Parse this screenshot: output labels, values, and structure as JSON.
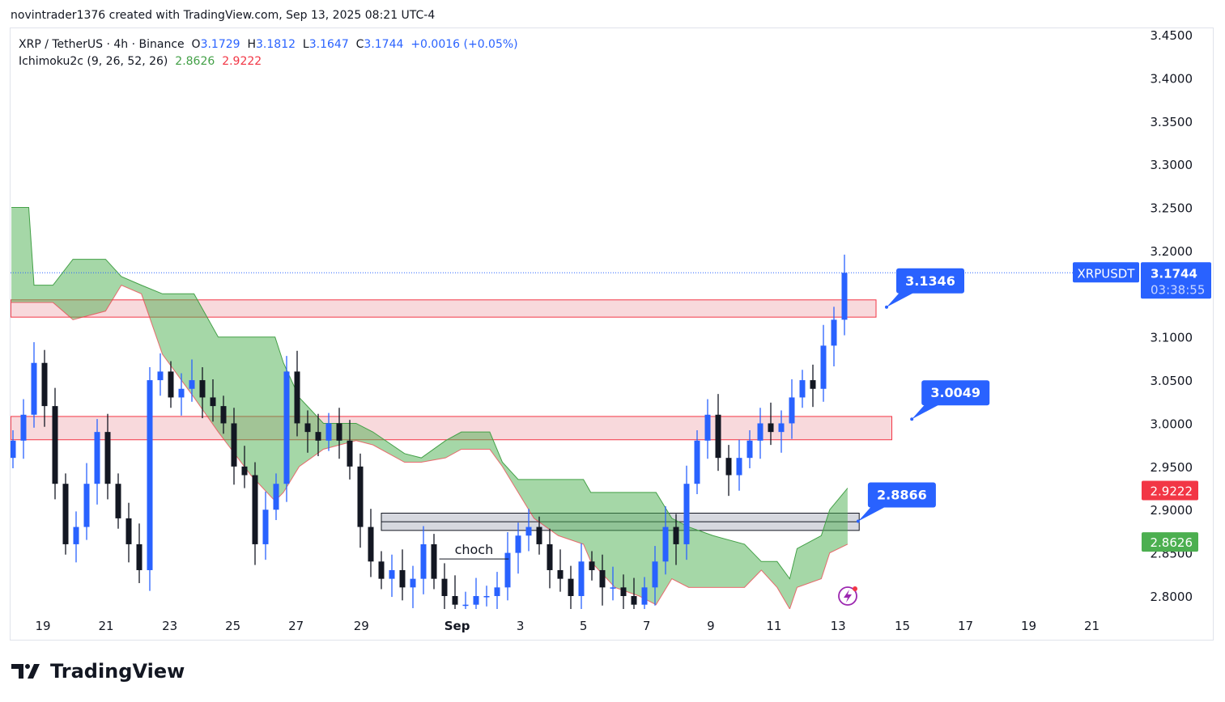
{
  "credit": "novintrader1376 created with TradingView.com, Sep 13, 2025 08:21 UTC-4",
  "legend": {
    "symbol": "XRP / TetherUS · 4h · Binance",
    "o_label": "O",
    "o": "3.1729",
    "h_label": "H",
    "h": "3.1812",
    "l_label": "L",
    "l": "3.1647",
    "c_label": "C",
    "c": "3.1744",
    "change": "+0.0016 (+0.05%)",
    "indicator": "Ichimoku2c (9, 26, 52, 26)",
    "ind_val1": "2.8626",
    "ind_val2": "2.9222"
  },
  "colors": {
    "up": "#2962ff",
    "down": "#131722",
    "cloud": "#a5d6a7",
    "span_a": "#43a047",
    "span_b": "#f23645",
    "zone": "#f8d7da",
    "zone_border": "#f23645",
    "accent": "#2962ff"
  },
  "chart_data": {
    "type": "candlestick",
    "ylim": [
      2.78,
      3.46
    ],
    "yticks": [
      "3.4500",
      "3.4000",
      "3.3500",
      "3.3000",
      "3.2500",
      "3.2000",
      "3.1000",
      "3.0500",
      "3.0000",
      "2.9500",
      "2.9000",
      "2.8500",
      "2.8000"
    ],
    "first_open": 2.96,
    "closes": [
      2.98,
      3.01,
      3.07,
      3.02,
      2.93,
      2.86,
      2.88,
      2.93,
      2.99,
      2.93,
      2.89,
      2.86,
      2.83,
      3.05,
      3.06,
      3.03,
      3.04,
      3.05,
      3.03,
      3.02,
      3.0,
      2.95,
      2.94,
      2.86,
      2.9,
      2.93,
      3.06,
      3.0,
      2.99,
      2.98,
      3.0,
      2.98,
      2.95,
      2.88,
      2.84,
      2.82,
      2.83,
      2.81,
      2.82,
      2.86,
      2.82,
      2.8,
      2.79,
      2.79,
      2.8,
      2.8,
      2.81,
      2.85,
      2.87,
      2.88,
      2.86,
      2.83,
      2.82,
      2.8,
      2.84,
      2.83,
      2.81,
      2.81,
      2.8,
      2.79,
      2.81,
      2.84,
      2.88,
      2.86,
      2.93,
      2.98,
      3.01,
      2.96,
      2.94,
      2.96,
      2.98,
      3.0,
      2.99,
      3.0,
      3.03,
      3.05,
      3.04,
      3.09,
      3.12,
      3.1744
    ],
    "cloud": [
      [
        -0.15,
        3.25,
        3.14
      ],
      [
        1.5,
        3.25,
        3.14
      ],
      [
        2,
        3.16,
        3.14
      ],
      [
        3.8,
        3.16,
        3.14
      ],
      [
        5.7,
        3.19,
        3.12
      ],
      [
        8.8,
        3.19,
        3.13
      ],
      [
        10.3,
        3.17,
        3.16
      ],
      [
        12.2,
        3.16,
        3.15
      ],
      [
        14.2,
        3.15,
        3.08
      ],
      [
        17.2,
        3.15,
        3.03
      ],
      [
        19.5,
        3.1,
        2.99
      ],
      [
        22.6,
        3.1,
        2.94
      ],
      [
        24.9,
        3.1,
        2.91
      ],
      [
        25.7,
        3.07,
        2.92
      ],
      [
        27.2,
        3.03,
        2.95
      ],
      [
        29.5,
        3.0,
        2.97
      ],
      [
        32.6,
        3.0,
        2.98
      ],
      [
        34.2,
        2.99,
        2.975
      ],
      [
        37.2,
        2.965,
        2.955
      ],
      [
        38.8,
        2.96,
        2.955
      ],
      [
        41.1,
        2.98,
        2.96
      ],
      [
        42.6,
        2.99,
        2.97
      ],
      [
        45.3,
        2.99,
        2.97
      ],
      [
        46.5,
        2.955,
        2.95
      ],
      [
        48,
        2.935,
        2.92
      ],
      [
        49.5,
        2.935,
        2.89
      ],
      [
        51.8,
        2.935,
        2.87
      ],
      [
        54.2,
        2.935,
        2.86
      ],
      [
        54.9,
        2.92,
        2.84
      ],
      [
        57.2,
        2.92,
        2.81
      ],
      [
        59.5,
        2.92,
        2.8
      ],
      [
        61.1,
        2.92,
        2.79
      ],
      [
        62.6,
        2.89,
        2.82
      ],
      [
        64.2,
        2.88,
        2.81
      ],
      [
        66.5,
        2.87,
        2.81
      ],
      [
        69.5,
        2.86,
        2.81
      ],
      [
        71.1,
        2.84,
        2.83
      ],
      [
        72.6,
        2.84,
        2.81
      ],
      [
        73.8,
        2.82,
        2.785
      ],
      [
        74.5,
        2.855,
        2.81
      ],
      [
        76.8,
        2.87,
        2.82
      ],
      [
        77.6,
        2.9,
        2.85
      ],
      [
        79.3,
        2.925,
        2.86
      ]
    ],
    "zones": [
      {
        "name": "resistance-zone-upper",
        "from": -0.2,
        "to": 82,
        "top": 3.143,
        "bottom": 3.123,
        "kind": "pink"
      },
      {
        "name": "resistance-zone-lower",
        "from": -0.2,
        "to": 83.5,
        "top": 3.008,
        "bottom": 2.981,
        "kind": "pink"
      },
      {
        "name": "support-zone",
        "from": 35,
        "to": 80.4,
        "top": 2.896,
        "bottom": 2.876,
        "kind": "gray"
      }
    ],
    "xticks": [
      {
        "label": "19",
        "idx": 2.85
      },
      {
        "label": "21",
        "idx": 8.85
      },
      {
        "label": "23",
        "idx": 14.9
      },
      {
        "label": "25",
        "idx": 20.9
      },
      {
        "label": "27",
        "idx": 26.9
      },
      {
        "label": "29",
        "idx": 33.1
      },
      {
        "label": "Sep",
        "idx": 42.2
      },
      {
        "label": "3",
        "idx": 48.2
      },
      {
        "label": "5",
        "idx": 54.2
      },
      {
        "label": "7",
        "idx": 60.2
      },
      {
        "label": "9",
        "idx": 66.3
      },
      {
        "label": "11",
        "idx": 72.3
      },
      {
        "label": "13",
        "idx": 78.4
      },
      {
        "label": "15",
        "idx": 84.5
      },
      {
        "label": "17",
        "idx": 90.5
      },
      {
        "label": "19",
        "idx": 96.5
      },
      {
        "label": "21",
        "idx": 102.5
      }
    ],
    "callouts": [
      {
        "label": "3.1346",
        "price": 3.1346,
        "idx": 83
      },
      {
        "label": "3.0049",
        "price": 3.0049,
        "idx": 85.4
      },
      {
        "label": "2.8866",
        "price": 2.8866,
        "idx": 80.3
      }
    ],
    "annotation": {
      "label": "choch",
      "price": 2.843,
      "from": 40.5,
      "to": 47.1
    },
    "last_price": {
      "symbol": "XRPUSDT",
      "price": "3.1744",
      "countdown": "03:38:55",
      "value": 3.1744
    },
    "span_labels": [
      {
        "label": "2.9222",
        "value": 2.9222,
        "kind": "red"
      },
      {
        "label": "2.8626",
        "value": 2.8626,
        "kind": "green"
      }
    ]
  },
  "logo": "TradingView"
}
